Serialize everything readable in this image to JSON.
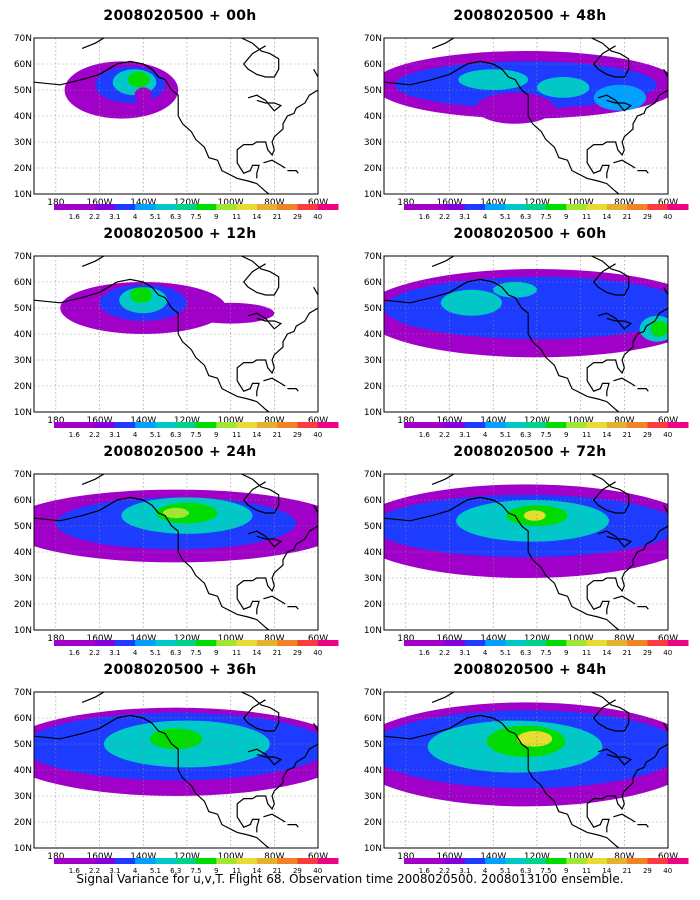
{
  "figure": {
    "footer": "Signal Variance for u,v,T. Flight 68. Observation time 2008020500. 2008013100 ensemble.",
    "lat_labels": [
      "70N",
      "60N",
      "50N",
      "40N",
      "30N",
      "20N",
      "10N"
    ],
    "lon_labels": [
      "180",
      "160W",
      "140W",
      "120W",
      "100W",
      "80W",
      "60W"
    ],
    "colorbar_labels": [
      "1.6",
      "2.2",
      "3.1",
      "4",
      "5.1",
      "6.3",
      "7.5",
      "9",
      "11",
      "14",
      "21",
      "29",
      "40"
    ],
    "colorbar_colors": [
      "#a000c8",
      "#8200dc",
      "#1e3cff",
      "#00a0ff",
      "#00c8c8",
      "#00d28c",
      "#00dc00",
      "#a0e632",
      "#e6dc32",
      "#e6af2d",
      "#f08228",
      "#fa3c3c",
      "#f00082"
    ],
    "panels": [
      {
        "title": "2008020500 + 00h"
      },
      {
        "title": "2008020500 + 48h"
      },
      {
        "title": "2008020500 + 12h"
      },
      {
        "title": "2008020500 + 60h"
      },
      {
        "title": "2008020500 + 24h"
      },
      {
        "title": "2008020500 + 72h"
      },
      {
        "title": "2008020500 + 36h"
      },
      {
        "title": "2008020500 + 84h"
      }
    ]
  }
}
